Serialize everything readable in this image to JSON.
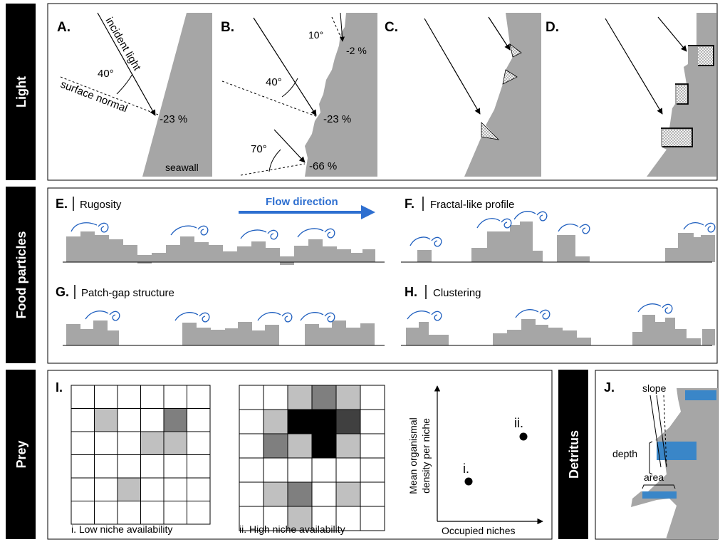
{
  "side_labels": {
    "light": "Light",
    "food": "Food particles",
    "prey": "Prey",
    "detritus": "Detritus"
  },
  "light": {
    "A": {
      "letter": "A.",
      "incident": "incident light",
      "normal": "surface normal",
      "angle": "40°",
      "pct": "-23 %",
      "wall": "seawall"
    },
    "B": {
      "letter": "B.",
      "a1": "10°",
      "p1": "-2 %",
      "a2": "40°",
      "p2": "-23 %",
      "a3": "70°",
      "p3": "-66 %"
    },
    "C": {
      "letter": "C."
    },
    "D": {
      "letter": "D."
    }
  },
  "food": {
    "flow": "Flow direction",
    "E": {
      "letter": "E.",
      "title": "Rugosity"
    },
    "F": {
      "letter": "F.",
      "title": "Fractal-like profile"
    },
    "G": {
      "letter": "G.",
      "title": "Patch-gap structure"
    },
    "H": {
      "letter": "H.",
      "title": "Clustering"
    }
  },
  "prey": {
    "letter": "I.",
    "grid1_caption": "i. Low niche availability",
    "grid2_caption": "ii. High niche availability",
    "grid1": [
      [
        0,
        0,
        0,
        0,
        0,
        0
      ],
      [
        0,
        1,
        0,
        0,
        3,
        0
      ],
      [
        0,
        0,
        0,
        1,
        1,
        0
      ],
      [
        0,
        0,
        0,
        0,
        0,
        0
      ],
      [
        0,
        0,
        1,
        0,
        0,
        0
      ],
      [
        0,
        0,
        0,
        0,
        0,
        0
      ]
    ],
    "grid2": [
      [
        0,
        0,
        1,
        3,
        1,
        0
      ],
      [
        0,
        1,
        5,
        5,
        4,
        0
      ],
      [
        0,
        3,
        1,
        5,
        1,
        0
      ],
      [
        0,
        0,
        0,
        0,
        0,
        0
      ],
      [
        0,
        1,
        3,
        0,
        1,
        0
      ],
      [
        0,
        0,
        1,
        0,
        0,
        0
      ]
    ],
    "scatter": {
      "ylabel1": "Mean organismal",
      "ylabel2": "density per niche",
      "xlabel": "Occupied niches",
      "p1": "i.",
      "p2": "ii."
    }
  },
  "detritus": {
    "letter": "J.",
    "slope": "slope",
    "depth": "depth",
    "area": "area"
  },
  "colors": {
    "gray": "#a6a6a6",
    "blue": "#1f5fbf",
    "flowblue": "#2e6fd0",
    "water": "#3a86c8",
    "black": "#000000"
  }
}
